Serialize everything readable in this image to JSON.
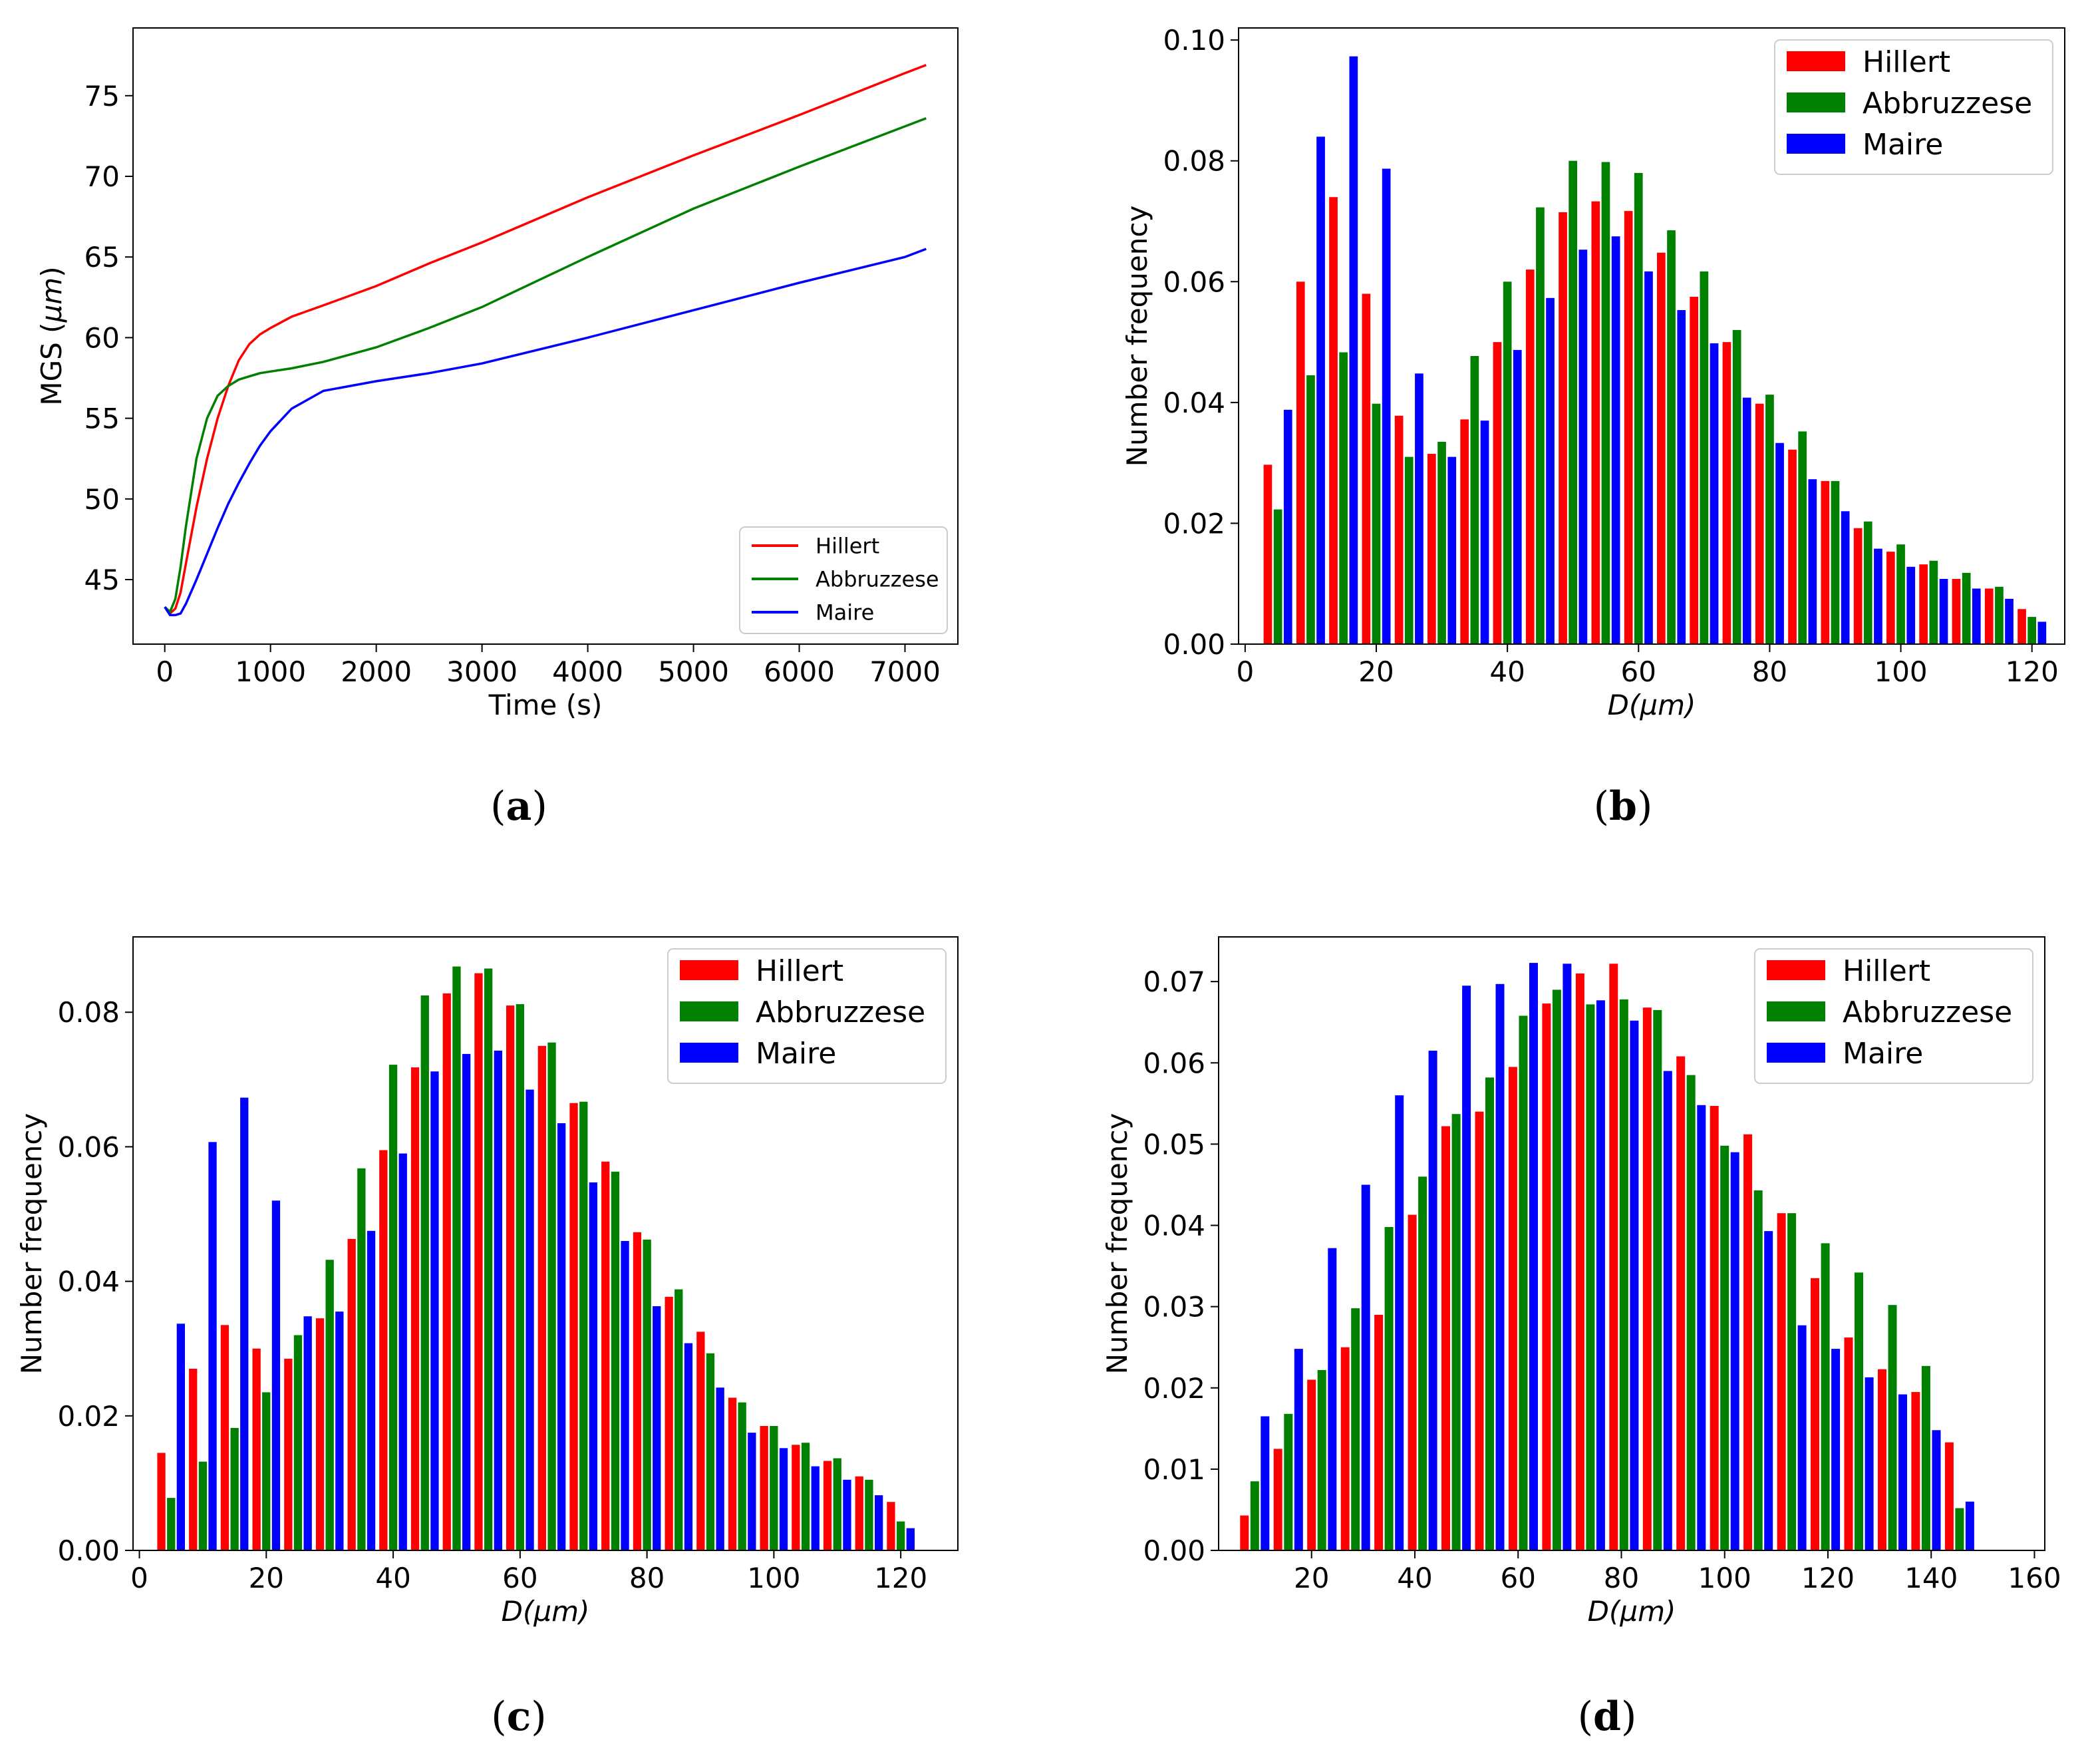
{
  "colors": {
    "Hillert": "#ff0000",
    "Abbruzzese": "#008000",
    "Maire": "#0000ff"
  },
  "chart_data": [
    {
      "panel": "a",
      "type": "line",
      "caption_letter": "a",
      "xlabel": "Time (s)",
      "ylabel_main": "MGS (",
      "ylabel_unit": "μm",
      "ylabel_end": ")",
      "xlim": [
        -300,
        7500
      ],
      "ylim": [
        41.0,
        79.2
      ],
      "xticks": [
        0,
        1000,
        2000,
        3000,
        4000,
        5000,
        6000,
        7000
      ],
      "yticks": [
        45,
        50,
        55,
        60,
        65,
        70,
        75
      ],
      "legend_position": "lower right",
      "series": [
        {
          "name": "Hillert",
          "x": [
            0,
            50,
            100,
            150,
            200,
            300,
            400,
            500,
            600,
            700,
            800,
            900,
            1000,
            1200,
            1500,
            2000,
            2500,
            3000,
            4000,
            5000,
            6000,
            7000,
            7200
          ],
          "y": [
            43.3,
            42.9,
            43.2,
            44.2,
            46.0,
            49.5,
            52.5,
            55.0,
            57.0,
            58.6,
            59.6,
            60.2,
            60.6,
            61.3,
            62.0,
            63.2,
            64.6,
            65.9,
            68.7,
            71.3,
            73.8,
            76.4,
            76.9
          ]
        },
        {
          "name": "Abbruzzese",
          "x": [
            0,
            50,
            100,
            150,
            200,
            300,
            400,
            500,
            600,
            700,
            800,
            900,
            1000,
            1200,
            1500,
            2000,
            2500,
            3000,
            4000,
            5000,
            6000,
            7000,
            7200
          ],
          "y": [
            43.3,
            43.0,
            43.8,
            45.8,
            48.3,
            52.5,
            55.0,
            56.4,
            57.0,
            57.4,
            57.6,
            57.8,
            57.9,
            58.1,
            58.5,
            59.4,
            60.6,
            61.9,
            65.0,
            68.0,
            70.6,
            73.1,
            73.6
          ]
        },
        {
          "name": "Maire",
          "x": [
            0,
            50,
            100,
            150,
            200,
            300,
            400,
            500,
            600,
            700,
            800,
            900,
            1000,
            1200,
            1500,
            2000,
            2500,
            3000,
            4000,
            5000,
            6000,
            7000,
            7200
          ],
          "y": [
            43.3,
            42.8,
            42.8,
            42.9,
            43.5,
            45.0,
            46.6,
            48.2,
            49.7,
            51.0,
            52.2,
            53.3,
            54.2,
            55.6,
            56.7,
            57.3,
            57.8,
            58.4,
            60.0,
            61.7,
            63.4,
            65.0,
            65.5
          ]
        }
      ]
    },
    {
      "panel": "b",
      "type": "bar",
      "caption_letter": "b",
      "xlabel": "D(μm)",
      "ylabel": "Number frequency",
      "xlim": [
        -1,
        125
      ],
      "ylim": [
        0,
        0.102
      ],
      "xticks": [
        0,
        20,
        40,
        60,
        80,
        100,
        120
      ],
      "yticks": [
        "0.00",
        "0.02",
        "0.04",
        "0.06",
        "0.08",
        "0.10"
      ],
      "bar_start": 5,
      "bar_step": 5,
      "legend_position": "upper right",
      "series": [
        {
          "name": "Hillert",
          "values": [
            0.0297,
            0.06,
            0.074,
            0.058,
            0.0378,
            0.0315,
            0.0372,
            0.05,
            0.062,
            0.0715,
            0.0733,
            0.0717,
            0.0648,
            0.0575,
            0.05,
            0.0398,
            0.0322,
            0.027,
            0.0192,
            0.0153,
            0.0132,
            0.0108,
            0.0092,
            0.0058
          ]
        },
        {
          "name": "Abbruzzese",
          "values": [
            0.0223,
            0.0445,
            0.0483,
            0.0398,
            0.031,
            0.0335,
            0.0477,
            0.06,
            0.0723,
            0.08,
            0.0798,
            0.078,
            0.0685,
            0.0617,
            0.052,
            0.0413,
            0.0352,
            0.027,
            0.0203,
            0.0165,
            0.0138,
            0.0118,
            0.0095,
            0.0045
          ]
        },
        {
          "name": "Maire",
          "values": [
            0.0388,
            0.084,
            0.0973,
            0.0787,
            0.0448,
            0.031,
            0.037,
            0.0487,
            0.0573,
            0.0653,
            0.0675,
            0.0617,
            0.0553,
            0.0498,
            0.0408,
            0.0333,
            0.0273,
            0.022,
            0.0158,
            0.0128,
            0.0108,
            0.0092,
            0.0075,
            0.0037
          ]
        }
      ]
    },
    {
      "panel": "c",
      "type": "bar",
      "caption_letter": "c",
      "xlabel": "D(μm)",
      "ylabel": "Number frequency",
      "xlim": [
        -1,
        129
      ],
      "ylim": [
        0,
        0.0912
      ],
      "xticks": [
        0,
        20,
        40,
        60,
        80,
        100,
        120
      ],
      "yticks": [
        "0.00",
        "0.02",
        "0.04",
        "0.06",
        "0.08"
      ],
      "bar_start": 5,
      "bar_step": 5,
      "legend_position": "upper right",
      "series": [
        {
          "name": "Hillert",
          "values": [
            0.0145,
            0.027,
            0.0335,
            0.03,
            0.0285,
            0.0345,
            0.0463,
            0.0595,
            0.0718,
            0.0828,
            0.0858,
            0.081,
            0.075,
            0.0665,
            0.0578,
            0.0473,
            0.0377,
            0.0325,
            0.0227,
            0.0185,
            0.0157,
            0.0133,
            0.011,
            0.0072
          ]
        },
        {
          "name": "Abbruzzese",
          "values": [
            0.0078,
            0.0132,
            0.0182,
            0.0235,
            0.032,
            0.0432,
            0.0568,
            0.0722,
            0.0825,
            0.0868,
            0.0865,
            0.0812,
            0.0755,
            0.0667,
            0.0563,
            0.0462,
            0.0388,
            0.0293,
            0.022,
            0.0185,
            0.016,
            0.0137,
            0.0105,
            0.0043
          ]
        },
        {
          "name": "Maire",
          "values": [
            0.0337,
            0.0607,
            0.0673,
            0.052,
            0.0348,
            0.0355,
            0.0475,
            0.059,
            0.0712,
            0.0738,
            0.0743,
            0.0685,
            0.0635,
            0.0547,
            0.046,
            0.0363,
            0.0308,
            0.0242,
            0.0175,
            0.0152,
            0.0125,
            0.0105,
            0.0082,
            0.0033
          ]
        }
      ]
    },
    {
      "panel": "d",
      "type": "bar",
      "caption_letter": "d",
      "xlabel": "D(μm)",
      "ylabel": "Number frequency",
      "xlim": [
        2,
        162
      ],
      "ylim": [
        0,
        0.0755
      ],
      "xticks": [
        20,
        40,
        60,
        80,
        100,
        120,
        140,
        160
      ],
      "yticks": [
        "0.00",
        "0.01",
        "0.02",
        "0.03",
        "0.04",
        "0.05",
        "0.06",
        "0.07"
      ],
      "bar_start": 9,
      "bar_step": 6.5,
      "legend_position": "upper right",
      "series": [
        {
          "name": "Hillert",
          "values": [
            0.0043,
            0.0125,
            0.021,
            0.025,
            0.029,
            0.0413,
            0.0522,
            0.054,
            0.0595,
            0.0673,
            0.071,
            0.0722,
            0.0668,
            0.0608,
            0.0547,
            0.0512,
            0.0415,
            0.0335,
            0.0262,
            0.0223,
            0.0195,
            0.0133
          ]
        },
        {
          "name": "Abbruzzese",
          "values": [
            0.0085,
            0.0168,
            0.0222,
            0.0298,
            0.0398,
            0.046,
            0.0537,
            0.0582,
            0.0658,
            0.069,
            0.0672,
            0.0678,
            0.0665,
            0.0585,
            0.0498,
            0.0443,
            0.0415,
            0.0378,
            0.0342,
            0.0302,
            0.0227,
            0.0052
          ]
        },
        {
          "name": "Maire",
          "values": [
            0.0165,
            0.0248,
            0.0372,
            0.045,
            0.056,
            0.0615,
            0.0695,
            0.0697,
            0.0723,
            0.0722,
            0.0677,
            0.0652,
            0.059,
            0.0548,
            0.049,
            0.0393,
            0.0277,
            0.0248,
            0.0213,
            0.0192,
            0.0148,
            0.006
          ]
        }
      ]
    }
  ]
}
